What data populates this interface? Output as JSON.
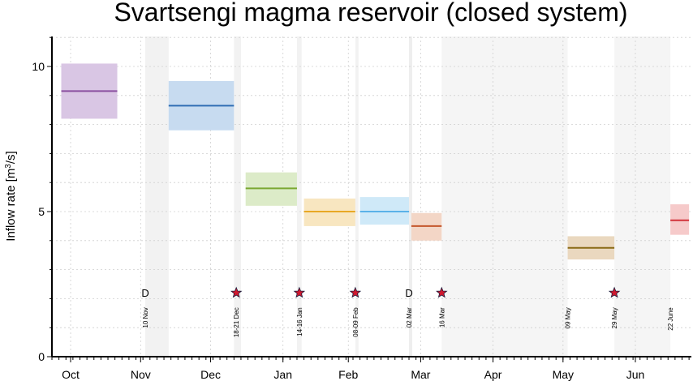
{
  "chart_data": {
    "type": "bar",
    "title": "Svartsengi magma reservoir (closed system)",
    "ylabel": "Inflow rate [m",
    "ylabel_sup": "3",
    "ylabel_end": "/s]",
    "ylim": [
      0,
      11
    ],
    "yticks": [
      0,
      5,
      10
    ],
    "x_timeline": "2023-10-01 to 2024-06-30",
    "month_labels": [
      {
        "label": "Oct",
        "date": "2023-10-09"
      },
      {
        "label": "Nov",
        "date": "2023-11-08"
      },
      {
        "label": "Dec",
        "date": "2023-12-08"
      },
      {
        "label": "Jan",
        "date": "2024-01-08"
      },
      {
        "label": "Feb",
        "date": "2024-02-05"
      },
      {
        "label": "Mar",
        "date": "2024-03-07"
      },
      {
        "label": "Apr",
        "date": "2024-04-07"
      },
      {
        "label": "May",
        "date": "2024-05-07"
      },
      {
        "label": "Jun",
        "date": "2024-06-07"
      }
    ],
    "shaded_periods": [
      {
        "start": "2023-11-10",
        "end": "2023-11-20",
        "color": "#f2f2f2"
      },
      {
        "start": "2023-12-18",
        "end": "2023-12-21",
        "color": "#f2f2f2"
      },
      {
        "start": "2024-01-14",
        "end": "2024-01-16",
        "color": "#f2f2f2"
      },
      {
        "start": "2024-02-08",
        "end": "2024-02-09",
        "color": "#f2f2f2"
      },
      {
        "start": "2024-03-02",
        "end": "2024-03-03",
        "color": "#eeeeee"
      },
      {
        "start": "2024-03-16",
        "end": "2024-05-09",
        "color": "#f5f5f5"
      },
      {
        "start": "2024-05-29",
        "end": "2024-06-22",
        "color": "#f5f5f5"
      }
    ],
    "series": [
      {
        "start": "2023-10-05",
        "end": "2023-10-29",
        "value": 9.15,
        "low": 8.2,
        "high": 10.1,
        "line_color": "#8a4fa0",
        "fill_color": "#d9c6e4"
      },
      {
        "start": "2023-11-20",
        "end": "2023-12-18",
        "value": 8.65,
        "low": 7.8,
        "high": 9.5,
        "line_color": "#2f6db3",
        "fill_color": "#c7dbf0"
      },
      {
        "start": "2023-12-23",
        "end": "2024-01-14",
        "value": 5.8,
        "low": 5.2,
        "high": 6.35,
        "line_color": "#7aa832",
        "fill_color": "#dcebc8"
      },
      {
        "start": "2024-01-17",
        "end": "2024-02-08",
        "value": 5.0,
        "low": 4.5,
        "high": 5.45,
        "line_color": "#e8a825",
        "fill_color": "#f8e6c0"
      },
      {
        "start": "2024-02-10",
        "end": "2024-03-02",
        "value": 5.0,
        "low": 4.55,
        "high": 5.5,
        "line_color": "#5bb2e8",
        "fill_color": "#cfe9f8"
      },
      {
        "start": "2024-03-03",
        "end": "2024-03-16",
        "value": 4.5,
        "low": 4.0,
        "high": 4.95,
        "line_color": "#c4562a",
        "fill_color": "#f3d6c6"
      },
      {
        "start": "2024-05-09",
        "end": "2024-05-29",
        "value": 3.75,
        "low": 3.35,
        "high": 4.15,
        "line_color": "#8a6a16",
        "fill_color": "#ead8bf"
      },
      {
        "start": "2024-06-22",
        "end": "2024-06-30",
        "value": 4.7,
        "low": 4.2,
        "high": 5.25,
        "line_color": "#d2323a",
        "fill_color": "#f6caca"
      }
    ],
    "events": [
      {
        "date": "2023-11-10",
        "label": "10 Nov",
        "marker": "D"
      },
      {
        "date": "2023-12-19",
        "label": "18-21 Dec",
        "marker": "star"
      },
      {
        "date": "2024-01-15",
        "label": "14-16 Jan",
        "marker": "star"
      },
      {
        "date": "2024-02-08",
        "label": "08-09 Feb",
        "marker": "star"
      },
      {
        "date": "2024-03-02",
        "label": "02 Mar",
        "marker": "D"
      },
      {
        "date": "2024-03-16",
        "label": "16 Mar",
        "marker": "star"
      },
      {
        "date": "2024-05-09",
        "label": "09 May",
        "marker": "none"
      },
      {
        "date": "2024-05-29",
        "label": "29 May",
        "marker": "star"
      },
      {
        "date": "2024-06-22",
        "label": "22 June",
        "marker": "none"
      }
    ],
    "marker_level": 2.2,
    "colors": {
      "star_fill": "#d0182e",
      "star_stroke": "#1a1a3a"
    },
    "grid": true
  }
}
